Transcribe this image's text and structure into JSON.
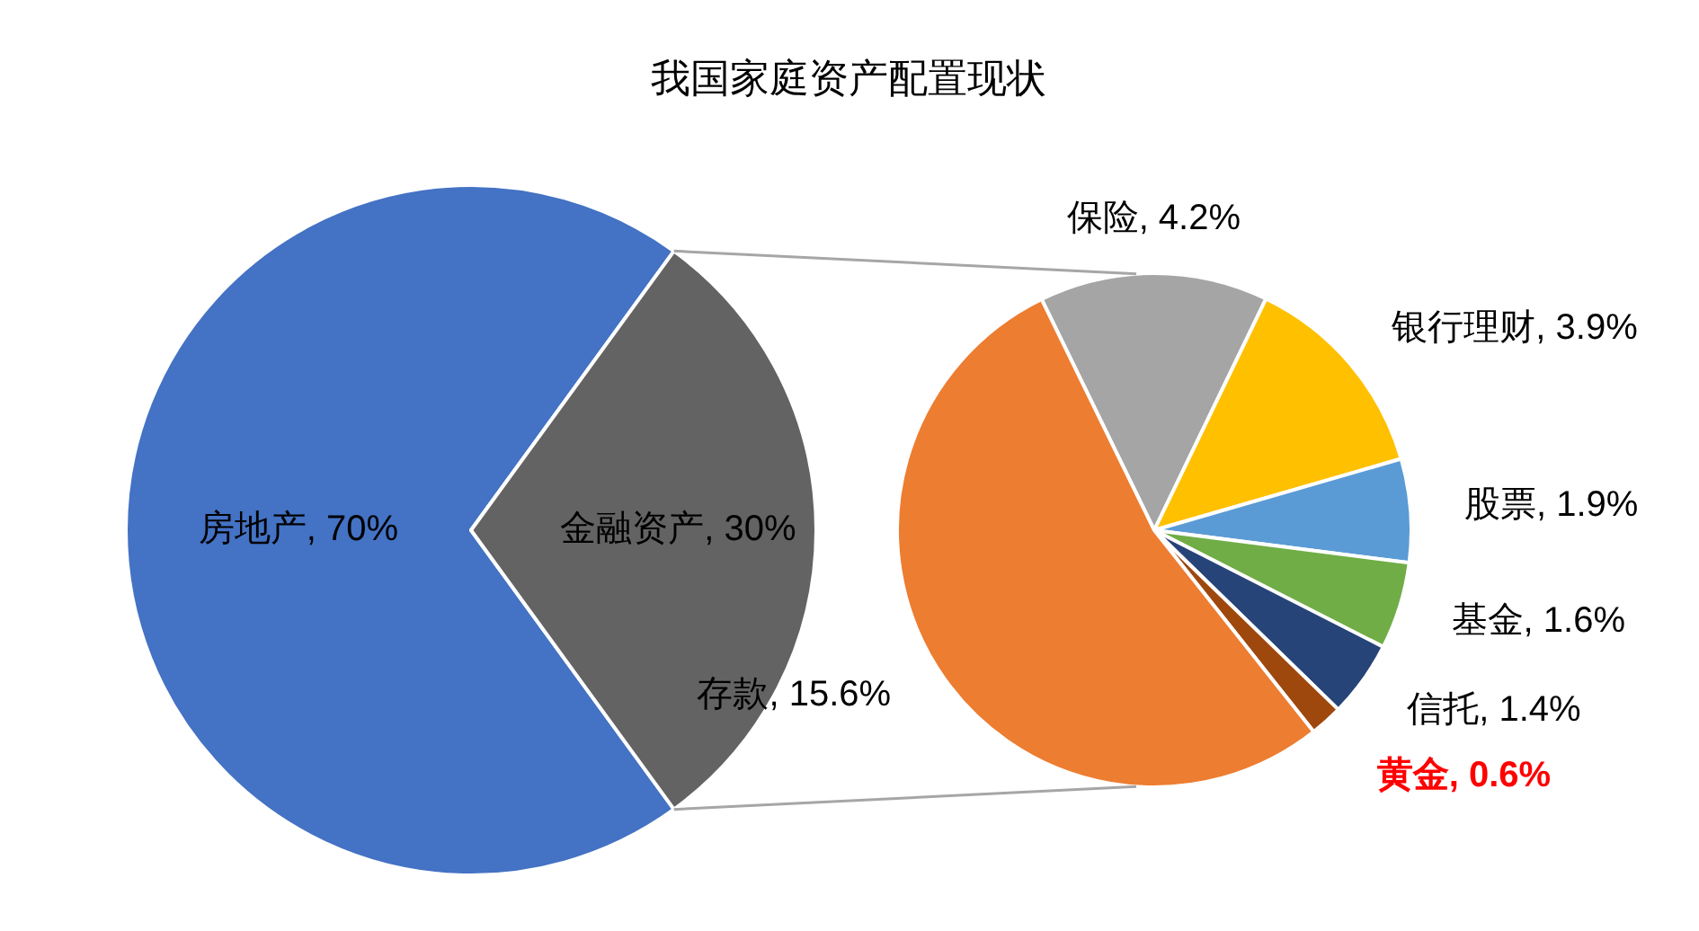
{
  "chart_data": [
    {
      "type": "pie",
      "title": "我国家庭资产配置现状",
      "categories": [
        "房地产",
        "金融资产"
      ],
      "values": [
        70,
        30
      ],
      "value_labels": [
        "70%",
        "30%"
      ],
      "colors": [
        "#4472c4",
        "#636363"
      ]
    },
    {
      "type": "pie",
      "categories": [
        "保险",
        "银行理财",
        "股票",
        "基金",
        "信托",
        "黄金",
        "存款"
      ],
      "values": [
        4.2,
        3.9,
        1.9,
        1.6,
        1.4,
        0.6,
        15.6
      ],
      "value_labels": [
        "4.2%",
        "3.9%",
        "1.9%",
        "1.6%",
        "1.4%",
        "0.6%",
        "15.6%"
      ],
      "colors": [
        "#a5a5a5",
        "#ffc000",
        "#5b9bd5",
        "#70ad47",
        "#264478",
        "#9e480e",
        "#ed7d31"
      ]
    }
  ]
}
